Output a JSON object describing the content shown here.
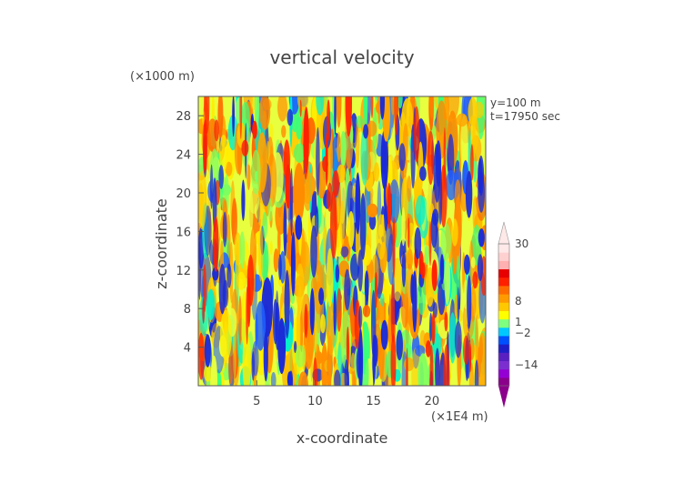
{
  "chart_data": {
    "type": "heatmap",
    "title": "vertical velocity",
    "xlabel": "x-coordinate",
    "ylabel": "z-coordinate",
    "x_unit": "(×1E4 m)",
    "y_unit": "(×1000 m)",
    "annotations": [
      "y=100 m",
      "t=17950 sec"
    ],
    "x_ticks": [
      "5",
      "10",
      "15",
      "20"
    ],
    "y_ticks": [
      "4",
      "8",
      "12",
      "16",
      "20",
      "24",
      "28"
    ],
    "xlim": [
      0,
      24.6
    ],
    "ylim": [
      0,
      30
    ],
    "colorbar": {
      "tick_labels": [
        "30",
        "8",
        "1",
        "−2",
        "−14"
      ],
      "colors": [
        "#8b008b",
        "#9400d3",
        "#7b2fd0",
        "#5a1fc0",
        "#1e1ec8",
        "#0050ff",
        "#00c8ff",
        "#7fff7f",
        "#ffff00",
        "#ffc800",
        "#ff9a00",
        "#ff6a00",
        "#ff2000",
        "#e80000",
        "#ffb0b0",
        "#ffd0d0",
        "#ffe8e8"
      ],
      "extend": "both"
    },
    "colors": {
      "dominant_field": [
        "#ff8c00",
        "#ffcc00",
        "#7fff5f",
        "#00ffd0",
        "#1a2ad8",
        "#e8ff40"
      ]
    }
  }
}
